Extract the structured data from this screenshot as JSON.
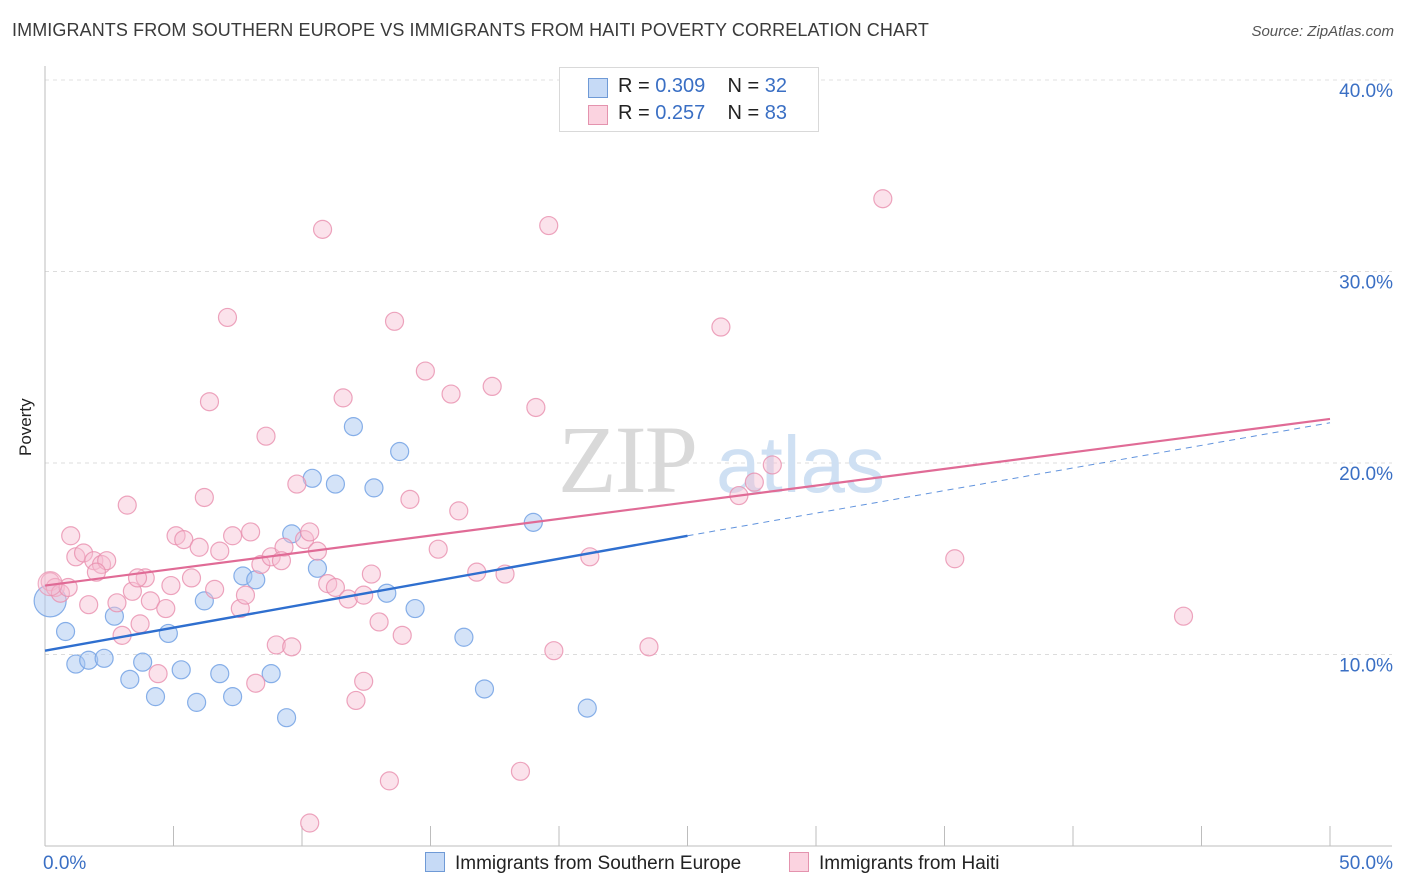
{
  "title": "IMMIGRANTS FROM SOUTHERN EUROPE VS IMMIGRANTS FROM HAITI POVERTY CORRELATION CHART",
  "source": "Source: ZipAtlas.com",
  "watermark": {
    "zip": "ZIP",
    "atlas": "atlas"
  },
  "legend": {
    "rows": [
      {
        "r_label": "R = ",
        "r_value": "0.309",
        "n_label": "N = ",
        "n_value": "32",
        "color": "#a9c8f2",
        "border": "#6f9ad6"
      },
      {
        "r_label": "R = ",
        "r_value": "0.257",
        "n_label": "N = ",
        "n_value": "83",
        "color": "#f7bfd2",
        "border": "#e493ae"
      }
    ]
  },
  "bottom_legend": {
    "series1": "Immigrants from Southern Europe",
    "series2": "Immigrants from Haiti"
  },
  "chart_data": {
    "type": "scatter",
    "title": "IMMIGRANTS FROM SOUTHERN EUROPE VS IMMIGRANTS FROM HAITI POVERTY CORRELATION CHART",
    "xlabel": "",
    "ylabel": "Poverty",
    "xlim": [
      0,
      50
    ],
    "ylim": [
      0,
      40
    ],
    "x_tick_labels": {
      "min": "0.0%",
      "max": "50.0%"
    },
    "y_ticks": [
      10,
      20,
      30,
      40
    ],
    "y_tick_labels": [
      "10.0%",
      "20.0%",
      "30.0%",
      "40.0%"
    ],
    "series": [
      {
        "name": "Immigrants from Southern Europe",
        "color": "#7aa6e6",
        "fill": "#a9c8f2",
        "points": [
          [
            0.2,
            12.8
          ],
          [
            0.8,
            11.2
          ],
          [
            1.2,
            9.5
          ],
          [
            1.7,
            9.7
          ],
          [
            2.3,
            9.8
          ],
          [
            2.7,
            12.0
          ],
          [
            3.3,
            8.7
          ],
          [
            3.8,
            9.6
          ],
          [
            4.3,
            7.8
          ],
          [
            4.8,
            11.1
          ],
          [
            5.3,
            9.2
          ],
          [
            5.9,
            7.5
          ],
          [
            6.2,
            12.8
          ],
          [
            6.8,
            9.0
          ],
          [
            7.3,
            7.8
          ],
          [
            7.7,
            14.1
          ],
          [
            8.2,
            13.9
          ],
          [
            8.8,
            9.0
          ],
          [
            9.4,
            6.7
          ],
          [
            9.6,
            16.3
          ],
          [
            10.4,
            19.2
          ],
          [
            10.6,
            14.5
          ],
          [
            11.3,
            18.9
          ],
          [
            12.0,
            21.9
          ],
          [
            12.8,
            18.7
          ],
          [
            13.3,
            13.2
          ],
          [
            13.8,
            20.6
          ],
          [
            14.4,
            12.4
          ],
          [
            16.3,
            10.9
          ],
          [
            17.1,
            8.2
          ],
          [
            19.0,
            16.9
          ],
          [
            21.1,
            7.2
          ]
        ],
        "trend": {
          "x1": 0,
          "y1": 10.2,
          "x2": 25,
          "y2": 16.2,
          "dashed_to_x": 50,
          "dashed_to_y": 22.1
        }
      },
      {
        "name": "Immigrants from Haiti",
        "color": "#e88fae",
        "fill": "#f7bfd2",
        "points": [
          [
            0.2,
            13.8
          ],
          [
            0.4,
            13.5
          ],
          [
            0.6,
            13.2
          ],
          [
            0.9,
            13.5
          ],
          [
            1.0,
            16.2
          ],
          [
            1.2,
            15.1
          ],
          [
            1.5,
            15.3
          ],
          [
            1.7,
            12.6
          ],
          [
            1.9,
            14.9
          ],
          [
            2.2,
            14.7
          ],
          [
            2.4,
            14.9
          ],
          [
            2.8,
            12.7
          ],
          [
            3.0,
            11.0
          ],
          [
            3.2,
            17.8
          ],
          [
            3.4,
            13.3
          ],
          [
            3.7,
            11.6
          ],
          [
            3.9,
            14.0
          ],
          [
            4.1,
            12.8
          ],
          [
            4.4,
            9.0
          ],
          [
            4.7,
            12.4
          ],
          [
            4.9,
            13.6
          ],
          [
            5.1,
            16.2
          ],
          [
            5.4,
            16.0
          ],
          [
            5.7,
            14.0
          ],
          [
            6.0,
            15.6
          ],
          [
            6.2,
            18.2
          ],
          [
            6.4,
            23.2
          ],
          [
            6.6,
            13.4
          ],
          [
            7.1,
            27.6
          ],
          [
            7.3,
            16.2
          ],
          [
            7.6,
            12.4
          ],
          [
            7.8,
            13.1
          ],
          [
            8.0,
            16.4
          ],
          [
            8.2,
            8.5
          ],
          [
            8.4,
            14.7
          ],
          [
            8.6,
            21.4
          ],
          [
            8.8,
            15.1
          ],
          [
            9.0,
            10.5
          ],
          [
            9.3,
            15.6
          ],
          [
            9.6,
            10.4
          ],
          [
            9.8,
            18.9
          ],
          [
            10.1,
            16.0
          ],
          [
            10.3,
            16.4
          ],
          [
            10.6,
            15.4
          ],
          [
            10.8,
            32.2
          ],
          [
            11.0,
            13.7
          ],
          [
            11.3,
            13.5
          ],
          [
            11.6,
            23.4
          ],
          [
            11.8,
            12.9
          ],
          [
            12.1,
            7.6
          ],
          [
            12.4,
            8.6
          ],
          [
            12.7,
            14.2
          ],
          [
            13.0,
            11.7
          ],
          [
            13.4,
            3.4
          ],
          [
            13.6,
            27.4
          ],
          [
            13.9,
            11.0
          ],
          [
            14.2,
            18.1
          ],
          [
            14.8,
            24.8
          ],
          [
            15.3,
            15.5
          ],
          [
            15.8,
            23.6
          ],
          [
            16.1,
            17.5
          ],
          [
            16.8,
            14.3
          ],
          [
            17.4,
            24.0
          ],
          [
            17.9,
            14.2
          ],
          [
            18.5,
            3.9
          ],
          [
            19.1,
            22.9
          ],
          [
            19.6,
            32.4
          ],
          [
            19.8,
            10.2
          ],
          [
            21.2,
            15.1
          ],
          [
            23.5,
            10.4
          ],
          [
            26.3,
            27.1
          ],
          [
            27.0,
            18.3
          ],
          [
            27.6,
            19.0
          ],
          [
            28.3,
            19.9
          ],
          [
            32.6,
            33.8
          ],
          [
            35.4,
            15.0
          ],
          [
            44.3,
            12.0
          ],
          [
            10.3,
            1.2
          ],
          [
            12.4,
            13.1
          ],
          [
            3.6,
            14.0
          ],
          [
            2.0,
            14.3
          ],
          [
            6.8,
            15.4
          ],
          [
            9.2,
            14.9
          ]
        ],
        "trend": {
          "x1": 0,
          "y1": 13.6,
          "x2": 50,
          "y2": 22.3
        }
      }
    ]
  }
}
